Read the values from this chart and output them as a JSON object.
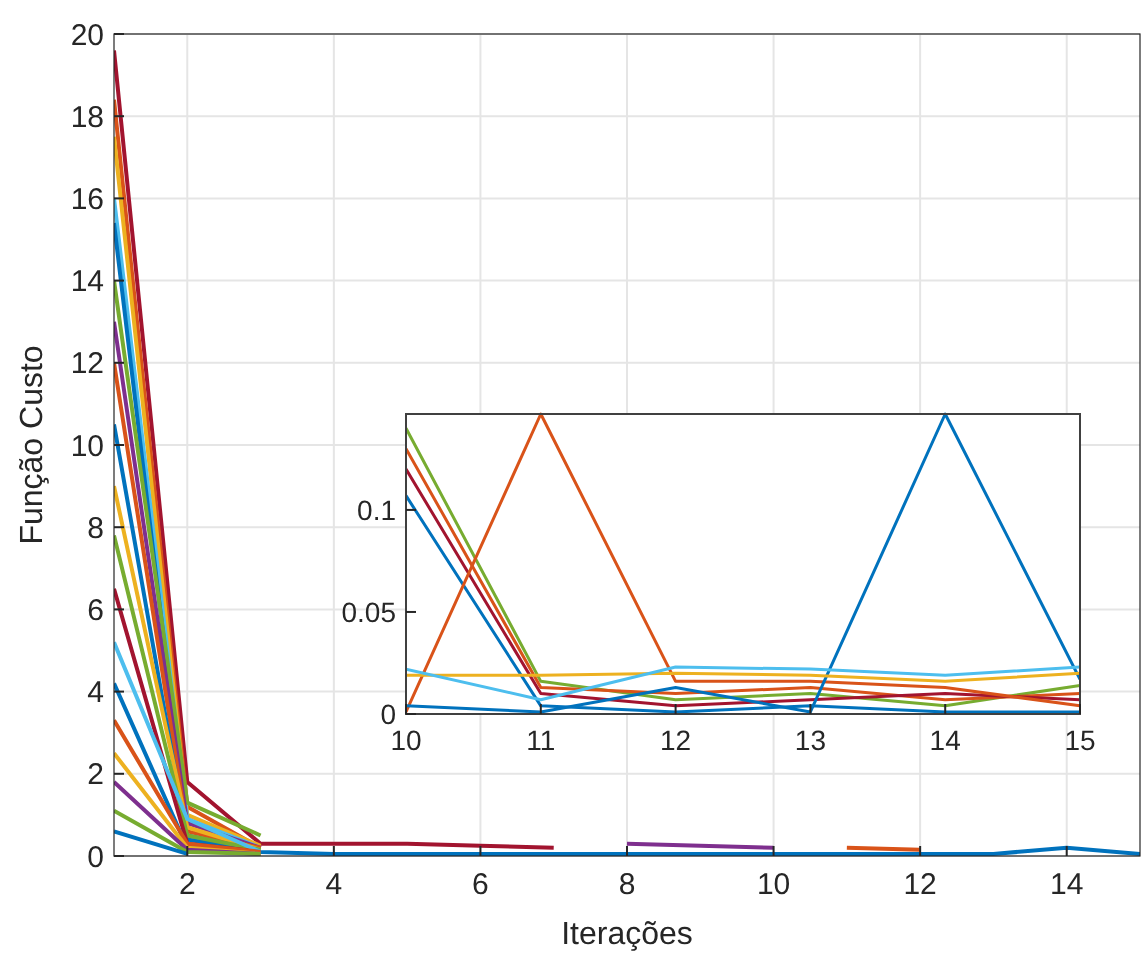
{
  "chart_data": [
    {
      "type": "line",
      "xlabel": "Iterações",
      "ylabel": "Função Custo",
      "xlim": [
        1,
        15
      ],
      "ylim": [
        0,
        20
      ],
      "xticks": [
        2,
        4,
        6,
        8,
        10,
        12,
        14
      ],
      "yticks": [
        0,
        2,
        4,
        6,
        8,
        10,
        12,
        14,
        16,
        18,
        20
      ],
      "grid": true,
      "x": [
        1,
        2,
        3,
        4,
        5,
        6,
        7,
        8,
        9,
        10,
        11,
        12,
        13,
        14,
        15
      ],
      "series": [
        {
          "color": "#a2142f",
          "values": [
            19.6,
            1.8,
            0.3,
            0.3,
            0.3,
            0.25,
            0.2,
            null,
            null,
            null,
            null,
            null,
            null,
            null,
            null
          ]
        },
        {
          "color": "#d95319",
          "values": [
            18.4,
            1.2,
            0.2,
            null,
            null,
            null,
            null,
            null,
            null,
            null,
            null,
            null,
            null,
            null,
            null
          ]
        },
        {
          "color": "#edb120",
          "values": [
            17.5,
            1.0,
            0.25,
            null,
            null,
            null,
            null,
            null,
            null,
            null,
            null,
            null,
            null,
            null,
            null
          ]
        },
        {
          "color": "#4dbeee",
          "values": [
            16.0,
            0.9,
            0.2,
            null,
            null,
            null,
            null,
            null,
            null,
            null,
            null,
            null,
            null,
            null,
            null
          ]
        },
        {
          "color": "#0072bd",
          "values": [
            15.4,
            0.5,
            0.15,
            null,
            null,
            null,
            null,
            null,
            null,
            null,
            null,
            null,
            null,
            null,
            null
          ]
        },
        {
          "color": "#77ac30",
          "values": [
            14.0,
            1.3,
            0.5,
            null,
            null,
            null,
            null,
            null,
            null,
            null,
            null,
            null,
            null,
            null,
            null
          ]
        },
        {
          "color": "#7e2f8e",
          "values": [
            13.0,
            0.8,
            0.2,
            null,
            null,
            null,
            null,
            0.3,
            0.25,
            0.2,
            null,
            null,
            null,
            null,
            null
          ]
        },
        {
          "color": "#d95319",
          "values": [
            12.0,
            0.6,
            0.2,
            null,
            null,
            null,
            null,
            null,
            null,
            null,
            0.2,
            0.15,
            null,
            null,
            null
          ]
        },
        {
          "color": "#0072bd",
          "values": [
            10.5,
            0.4,
            0.1,
            0.05,
            0.05,
            0.05,
            0.05,
            0.05,
            0.05,
            0.05,
            0.05,
            0.05,
            0.05,
            0.2,
            0.05
          ]
        },
        {
          "color": "#edb120",
          "values": [
            9.0,
            0.7,
            0.15,
            null,
            null,
            null,
            null,
            null,
            null,
            null,
            null,
            null,
            null,
            null,
            null
          ]
        },
        {
          "color": "#77ac30",
          "values": [
            7.8,
            0.5,
            0.15,
            null,
            null,
            null,
            null,
            null,
            null,
            null,
            null,
            null,
            null,
            null,
            null
          ]
        },
        {
          "color": "#a2142f",
          "values": [
            6.5,
            0.3,
            0.1,
            null,
            null,
            null,
            null,
            null,
            null,
            null,
            null,
            null,
            null,
            null,
            null
          ]
        },
        {
          "color": "#4dbeee",
          "values": [
            5.2,
            0.9,
            0.1,
            null,
            null,
            null,
            null,
            null,
            null,
            null,
            null,
            null,
            null,
            null,
            null
          ]
        },
        {
          "color": "#0072bd",
          "values": [
            4.2,
            0.2,
            0.1,
            null,
            null,
            null,
            null,
            null,
            null,
            null,
            null,
            null,
            null,
            null,
            null
          ]
        },
        {
          "color": "#d95319",
          "values": [
            3.3,
            0.3,
            0.1,
            null,
            null,
            null,
            null,
            null,
            null,
            null,
            null,
            null,
            null,
            null,
            null
          ]
        },
        {
          "color": "#edb120",
          "values": [
            2.5,
            0.2,
            0.05,
            null,
            null,
            null,
            null,
            null,
            null,
            null,
            null,
            null,
            null,
            null,
            null
          ]
        },
        {
          "color": "#7e2f8e",
          "values": [
            1.8,
            0.15,
            0.05,
            null,
            null,
            null,
            null,
            null,
            null,
            null,
            null,
            null,
            null,
            null,
            null
          ]
        },
        {
          "color": "#77ac30",
          "values": [
            1.1,
            0.1,
            0.05,
            null,
            null,
            null,
            null,
            null,
            null,
            null,
            null,
            null,
            null,
            null,
            null
          ]
        },
        {
          "color": "#0072bd",
          "values": [
            0.6,
            0.05,
            null,
            null,
            null,
            null,
            null,
            null,
            null,
            null,
            null,
            null,
            null,
            null,
            null
          ]
        }
      ]
    },
    {
      "type": "line",
      "xlim": [
        10,
        15
      ],
      "ylim": [
        0,
        0.147
      ],
      "xticks": [
        10,
        11,
        12,
        13,
        14,
        15
      ],
      "yticks": [
        0,
        0.05,
        0.1
      ],
      "grid": false,
      "x": [
        10,
        11,
        12,
        13,
        14,
        15
      ],
      "series": [
        {
          "color": "#77ac30",
          "values": [
            0.14,
            0.016,
            0.007,
            0.01,
            0.004,
            0.014
          ]
        },
        {
          "color": "#d95319",
          "values": [
            0.13,
            0.013,
            0.01,
            0.013,
            0.007,
            0.01
          ]
        },
        {
          "color": "#a2142f",
          "values": [
            0.12,
            0.01,
            0.004,
            0.007,
            0.01,
            0.007
          ]
        },
        {
          "color": "#0072bd",
          "values": [
            0.107,
            0.004,
            0.001,
            0.004,
            0.001,
            0.001
          ]
        },
        {
          "color": "#d95319",
          "values": [
            0.001,
            0.147,
            0.016,
            0.016,
            0.013,
            0.004
          ]
        },
        {
          "color": "#0072bd",
          "values": [
            0.004,
            0.001,
            0.013,
            0.001,
            0.147,
            0.017
          ]
        },
        {
          "color": "#edb120",
          "values": [
            0.019,
            0.019,
            0.02,
            0.019,
            0.016,
            0.02
          ]
        },
        {
          "color": "#4dbeee",
          "values": [
            0.022,
            0.007,
            0.023,
            0.022,
            0.019,
            0.023
          ]
        }
      ]
    }
  ]
}
